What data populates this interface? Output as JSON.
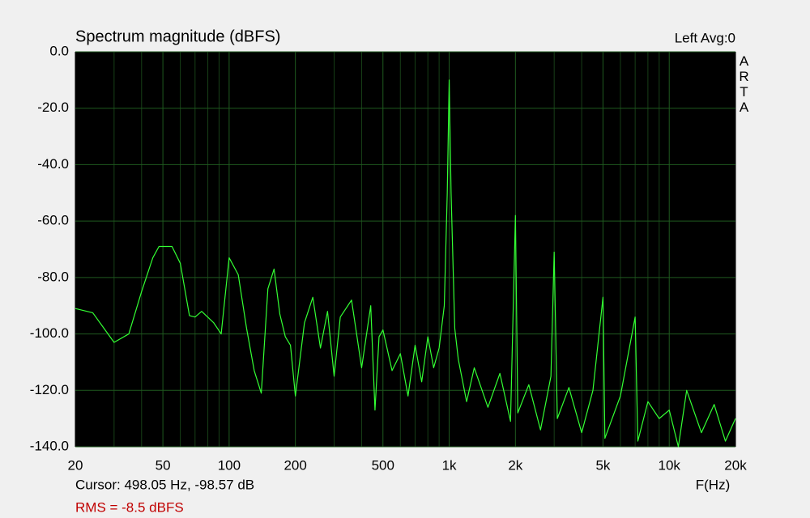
{
  "chart_data": {
    "type": "line",
    "title": "Spectrum magnitude (dBFS)",
    "channel_label": "Left  Avg:0",
    "side_label": "ARTA",
    "x_label": "F(Hz)",
    "cursor_readout": "Cursor: 498.05 Hz, -98.57 dB",
    "rms_readout": "RMS =   -8.5 dBFS",
    "x_log": true,
    "grid": true,
    "xlim": [
      20,
      20000
    ],
    "ylim": [
      -140,
      0
    ],
    "xticks": [
      20,
      50,
      100,
      200,
      500,
      {
        "value": 1000,
        "label": "1k"
      },
      {
        "value": 2000,
        "label": "2k"
      },
      {
        "value": 5000,
        "label": "5k"
      },
      {
        "value": 10000,
        "label": "10k"
      },
      {
        "value": 20000,
        "label": "20k"
      }
    ],
    "x_minor_ticks": [
      30,
      40,
      60,
      70,
      80,
      90,
      300,
      400,
      600,
      700,
      800,
      900,
      3000,
      4000,
      6000,
      7000,
      8000,
      9000
    ],
    "yticks": [
      {
        "value": 0,
        "label": "0.0"
      },
      {
        "value": -20,
        "label": "-20.0"
      },
      {
        "value": -40,
        "label": "-40.0"
      },
      {
        "value": -60,
        "label": "-60.0"
      },
      {
        "value": -80,
        "label": "-80.0"
      },
      {
        "value": -100,
        "label": "-100.0"
      },
      {
        "value": -120,
        "label": "-120.0"
      },
      {
        "value": -140,
        "label": "-140.0"
      }
    ],
    "series": [
      {
        "color": "#33ff33",
        "x": [
          20,
          24,
          30,
          35,
          40,
          45,
          48,
          55,
          60,
          66,
          70,
          75,
          85,
          92,
          100,
          110,
          120,
          130,
          140,
          150,
          160,
          170,
          180,
          190,
          200,
          220,
          240,
          260,
          280,
          300,
          320,
          360,
          400,
          440,
          460,
          480,
          500,
          550,
          600,
          650,
          700,
          750,
          800,
          850,
          900,
          950,
          980,
          1000,
          1020,
          1060,
          1100,
          1200,
          1300,
          1500,
          1700,
          1900,
          2000,
          2050,
          2300,
          2600,
          2900,
          3000,
          3100,
          3500,
          4000,
          4500,
          5000,
          5100,
          6000,
          7000,
          7200,
          8000,
          9000,
          10000,
          11000,
          12000,
          14000,
          16000,
          18000,
          20000
        ],
        "values": [
          -91,
          -92.5,
          -103,
          -100,
          -85,
          -73,
          -69,
          -69,
          -75,
          -93.5,
          -94,
          -92,
          -96,
          -100,
          -73,
          -79,
          -98,
          -113,
          -121,
          -84,
          -77,
          -93,
          -101,
          -104,
          -122,
          -96,
          -87,
          -105,
          -92,
          -115,
          -94,
          -88,
          -112,
          -90,
          -127,
          -101,
          -98.6,
          -113,
          -107,
          -122,
          -104,
          -117,
          -101,
          -112,
          -105,
          -90,
          -50,
          -10,
          -50,
          -98,
          -109,
          -124,
          -112,
          -126,
          -114,
          -131,
          -58,
          -128,
          -118,
          -134,
          -115,
          -71,
          -130,
          -119,
          -135,
          -120,
          -87,
          -137,
          -122,
          -94,
          -138,
          -124,
          -130,
          -127,
          -140,
          -120,
          -135,
          -125,
          -138,
          -130
        ]
      }
    ]
  }
}
